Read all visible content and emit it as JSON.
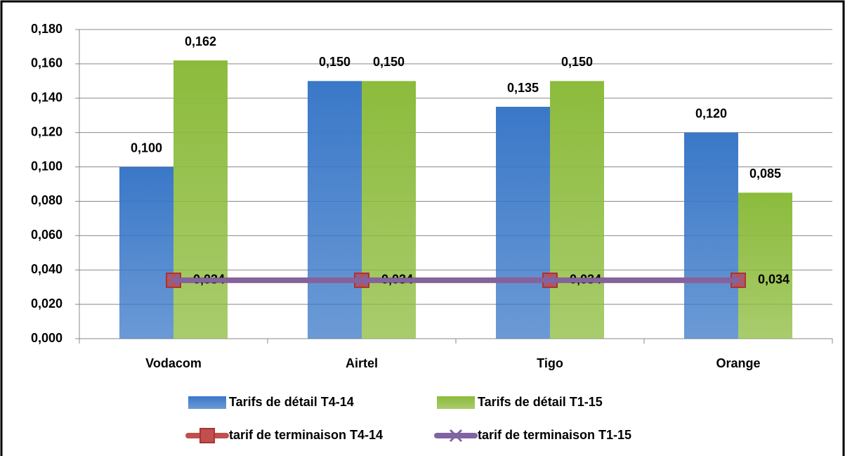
{
  "chart_data": {
    "type": "bar",
    "categories": [
      "Vodacom",
      "Airtel",
      "Tigo",
      "Orange"
    ],
    "series": [
      {
        "name": "Tarifs de détail T4-14",
        "color": "#3a78c8",
        "values": [
          0.1,
          0.15,
          0.135,
          0.12
        ],
        "value_labels": [
          "0,100",
          "0,150",
          "0,135",
          "0,120"
        ]
      },
      {
        "name": "Tarifs de détail T1-15",
        "color": "#8cbb3c",
        "values": [
          0.162,
          0.15,
          0.15,
          0.085
        ],
        "value_labels": [
          "0,162",
          "0,150",
          "0,150",
          "0,085"
        ]
      },
      {
        "name": "tarif de terminaison T4-14",
        "type": "line",
        "color": "#c0504d",
        "values": [
          0.034,
          0.034,
          0.034,
          0.034
        ],
        "value_labels": [
          "0,034",
          "0,034",
          "0,034",
          "0,034"
        ]
      },
      {
        "name": "tarif de terminaison T1-15",
        "type": "line",
        "color": "#8064a2",
        "values": [
          0.034,
          0.034,
          0.034,
          0.034
        ]
      }
    ],
    "ylim": [
      0,
      0.18
    ],
    "yticks": [
      {
        "value": 0,
        "label": "0,000"
      },
      {
        "value": 0.02,
        "label": "0,020"
      },
      {
        "value": 0.04,
        "label": "0,040"
      },
      {
        "value": 0.06,
        "label": "0,060"
      },
      {
        "value": 0.08,
        "label": "0,080"
      },
      {
        "value": 0.1,
        "label": "0,100"
      },
      {
        "value": 0.12,
        "label": "0,120"
      },
      {
        "value": 0.14,
        "label": "0,140"
      },
      {
        "value": 0.16,
        "label": "0,160"
      },
      {
        "value": 0.18,
        "label": "0,180"
      }
    ],
    "grid": true,
    "legend": "bottom"
  }
}
